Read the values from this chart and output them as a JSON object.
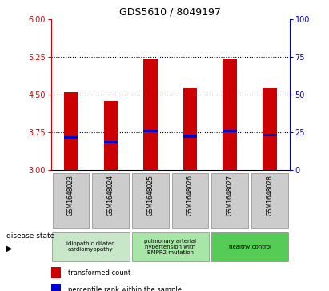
{
  "title": "GDS5610 / 8049197",
  "samples": [
    "GSM1648023",
    "GSM1648024",
    "GSM1648025",
    "GSM1648026",
    "GSM1648027",
    "GSM1648028"
  ],
  "bar_bottom": 3.0,
  "red_tops": [
    4.55,
    4.38,
    5.22,
    4.62,
    5.22,
    4.62
  ],
  "blue_values": [
    3.65,
    3.55,
    3.78,
    3.67,
    3.78,
    3.7
  ],
  "ylim": [
    3.0,
    6.0
  ],
  "yticks_left": [
    3,
    3.75,
    4.5,
    5.25,
    6
  ],
  "yticks_right": [
    0,
    25,
    50,
    75,
    100
  ],
  "right_ylim": [
    0,
    100
  ],
  "bar_color": "#cc0000",
  "blue_color": "#0000cc",
  "bar_width": 0.35,
  "disease_groups": [
    {
      "label": "idiopathic dilated\ncardiomyopathy",
      "spans": [
        0,
        2
      ],
      "color": "#c8e6c8"
    },
    {
      "label": "pulmonary arterial\nhypertension with\nBMPR2 mutation",
      "spans": [
        2,
        4
      ],
      "color": "#a8e6a8"
    },
    {
      "label": "healthy control",
      "spans": [
        4,
        6
      ],
      "color": "#55cc55"
    }
  ],
  "legend_red": "transformed count",
  "legend_blue": "percentile rank within the sample",
  "disease_state_label": "disease state",
  "left_axis_color": "#cc0000",
  "right_axis_color": "#0000cc",
  "bg_color": "#ffffff",
  "tick_label_area_bg": "#cccccc",
  "grid_yticks": [
    3.75,
    4.5,
    5.25
  ]
}
